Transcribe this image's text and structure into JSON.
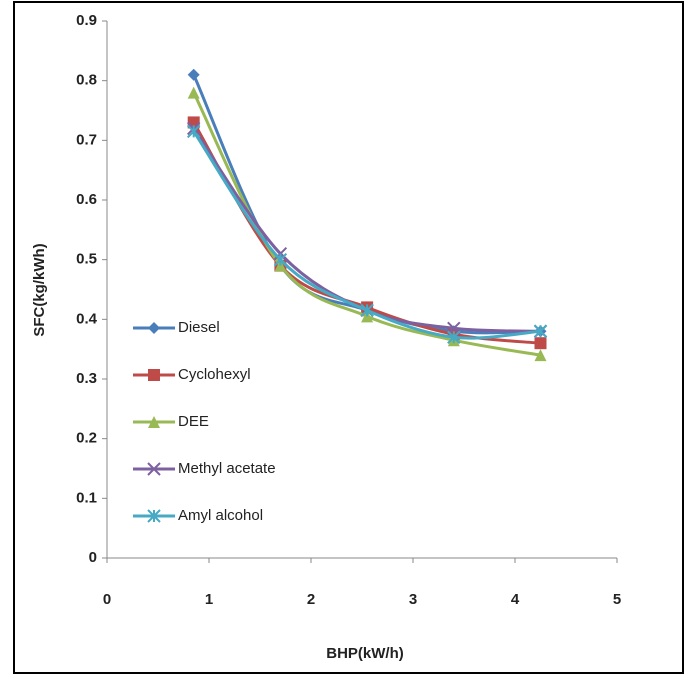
{
  "chart_data": {
    "type": "line",
    "xlabel": "BHP(kW/h)",
    "ylabel": "SFC(kg/kWh)",
    "x": [
      0.85,
      1.7,
      2.55,
      3.4,
      4.25
    ],
    "series": [
      {
        "name": "Diesel",
        "color": "#4a7ebb",
        "marker": "diamond",
        "values": [
          0.81,
          0.49,
          0.415,
          0.38,
          0.38
        ]
      },
      {
        "name": "Cyclohexyl",
        "color": "#be4b48",
        "marker": "square",
        "values": [
          0.73,
          0.49,
          0.42,
          0.375,
          0.36
        ]
      },
      {
        "name": "DEE",
        "color": "#98b954",
        "marker": "triangle",
        "values": [
          0.78,
          0.49,
          0.405,
          0.365,
          0.34
        ]
      },
      {
        "name": "Methyl acetate",
        "color": "#7d60a0",
        "marker": "x",
        "values": [
          0.72,
          0.51,
          0.415,
          0.385,
          0.38
        ]
      },
      {
        "name": "Amyl alcohol",
        "color": "#46aac5",
        "marker": "star",
        "values": [
          0.715,
          0.5,
          0.415,
          0.37,
          0.38
        ]
      }
    ],
    "xlim": [
      0,
      5
    ],
    "xticks": [
      0,
      1,
      2,
      3,
      4,
      5
    ],
    "ylim": [
      0,
      0.9
    ],
    "yticks": [
      0,
      0.1,
      0.2,
      0.3,
      0.4,
      0.5,
      0.6,
      0.7,
      0.8,
      0.9
    ],
    "grid": false,
    "legend": "left"
  }
}
